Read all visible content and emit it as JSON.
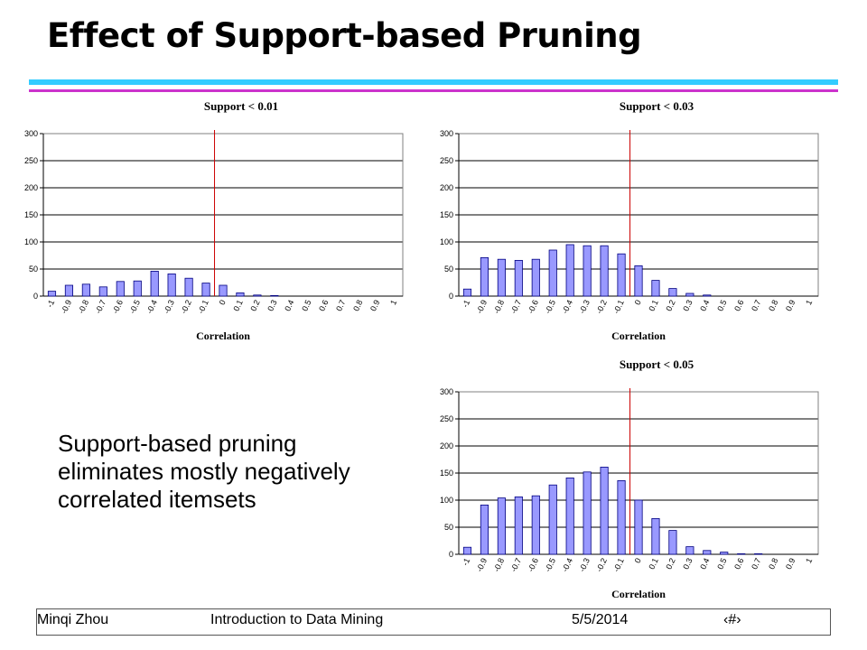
{
  "slide": {
    "title": "Effect of Support-based Pruning",
    "caption": "Support-based pruning eliminates mostly negatively correlated itemsets",
    "footer": {
      "author": "Minqi Zhou",
      "course": "Introduction to Data Mining",
      "date": "5/5/2014",
      "page_symbol": "‹#›"
    }
  },
  "colors": {
    "bar_fill": "#9999ff",
    "bar_stroke": "#000080",
    "zero_line": "#cc0000",
    "rule_top": "#33ccff",
    "rule_bottom": "#cc33cc"
  },
  "chart_data": [
    {
      "type": "bar",
      "title": "Support < 0.01",
      "xlabel": "Correlation",
      "ylabel": "",
      "ylim": [
        0,
        300
      ],
      "yticks": [
        "0",
        "50",
        "100",
        "150",
        "200",
        "250",
        "300"
      ],
      "grid": true,
      "categories": [
        "-1",
        "-0.9",
        "-0.8",
        "-0.7",
        "-0.6",
        "-0.5",
        "-0.4",
        "-0.3",
        "-0.2",
        "-0.1",
        "0",
        "0.1",
        "0.2",
        "0.3",
        "0.4",
        "0.5",
        "0.6",
        "0.7",
        "0.8",
        "0.9",
        "1"
      ],
      "values": [
        9,
        20,
        22,
        17,
        27,
        28,
        46,
        41,
        33,
        24,
        20,
        6,
        2,
        1,
        0,
        0,
        0,
        0,
        0,
        0,
        0
      ]
    },
    {
      "type": "bar",
      "title": "Support < 0.03",
      "xlabel": "Correlation",
      "ylabel": "",
      "ylim": [
        0,
        300
      ],
      "yticks": [
        "0",
        "50",
        "100",
        "150",
        "200",
        "250",
        "300"
      ],
      "grid": true,
      "categories": [
        "-1",
        "-0.9",
        "-0.8",
        "-0.7",
        "-0.6",
        "-0.5",
        "-0.4",
        "-0.3",
        "-0.2",
        "-0.1",
        "0",
        "0.1",
        "0.2",
        "0.3",
        "0.4",
        "0.5",
        "0.6",
        "0.7",
        "0.8",
        "0.9",
        "1"
      ],
      "values": [
        13,
        71,
        68,
        66,
        68,
        85,
        95,
        93,
        93,
        78,
        56,
        29,
        14,
        5,
        2,
        0,
        0,
        0,
        0,
        0,
        0
      ]
    },
    {
      "type": "bar",
      "title": "Support < 0.05",
      "xlabel": "Correlation",
      "ylabel": "",
      "ylim": [
        0,
        300
      ],
      "yticks": [
        "0",
        "50",
        "100",
        "150",
        "200",
        "250",
        "300"
      ],
      "grid": true,
      "categories": [
        "-1",
        "-0.9",
        "-0.8",
        "-0.7",
        "-0.6",
        "-0.5",
        "-0.4",
        "-0.3",
        "-0.2",
        "-0.1",
        "0",
        "0.1",
        "0.2",
        "0.3",
        "0.4",
        "0.5",
        "0.6",
        "0.7",
        "0.8",
        "0.9",
        "1"
      ],
      "values": [
        13,
        91,
        104,
        106,
        108,
        128,
        141,
        152,
        161,
        136,
        100,
        66,
        44,
        14,
        7,
        4,
        1,
        1,
        0,
        0,
        0
      ]
    }
  ]
}
